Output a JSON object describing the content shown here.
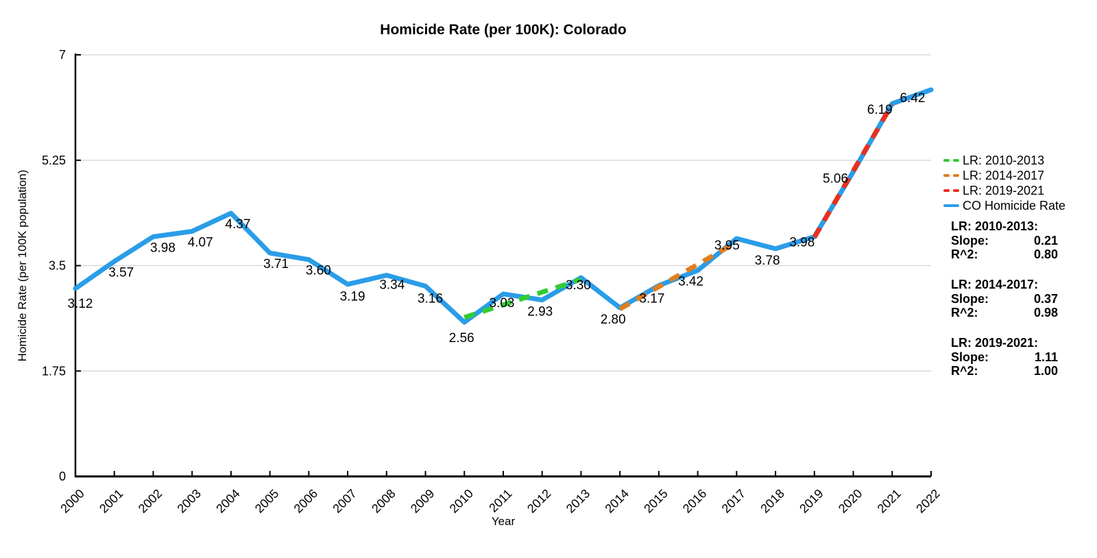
{
  "title": "Homicide Rate (per 100K): Colorado",
  "chart_data": {
    "type": "line",
    "title": "Homicide Rate (per 100K): Colorado",
    "xlabel": "Year",
    "ylabel": "Homicide Rate (per 100K population)",
    "x": [
      2000,
      2001,
      2002,
      2003,
      2004,
      2005,
      2006,
      2007,
      2008,
      2009,
      2010,
      2011,
      2012,
      2013,
      2014,
      2015,
      2016,
      2017,
      2018,
      2019,
      2020,
      2021,
      2022
    ],
    "xtick_labels": [
      "2000",
      "2001",
      "2002",
      "2003",
      "2004",
      "2005",
      "2006",
      "2007",
      "2008",
      "2009",
      "2010",
      "2011",
      "2012",
      "2013",
      "2014",
      "2015",
      "2016",
      "2017",
      "2018",
      "2019",
      "2020",
      "2021",
      "2022"
    ],
    "ylim": [
      0,
      7
    ],
    "ytick_values": [
      0,
      1.75,
      3.5,
      5.25,
      7
    ],
    "ytick_labels": [
      "0",
      "1.75",
      "3.5",
      "5.25",
      "7"
    ],
    "grid": "horizontal",
    "legend_position": "right",
    "series": [
      {
        "name": "CO Homicide Rate",
        "color": "#2A9DE8",
        "style": "solid",
        "values": [
          3.12,
          3.57,
          3.98,
          4.07,
          4.37,
          3.71,
          3.6,
          3.19,
          3.34,
          3.16,
          2.56,
          3.03,
          2.93,
          3.3,
          2.8,
          3.17,
          3.42,
          3.95,
          3.78,
          3.98,
          5.06,
          6.19,
          6.42
        ],
        "labels": [
          "3.12",
          "3.57",
          "3.98",
          "4.07",
          "4.37",
          "3.71",
          "3.60",
          "3.19",
          "3.34",
          "3.16",
          "2.56",
          "3.03",
          "2.93",
          "3.30",
          "2.80",
          "3.17",
          "3.42",
          "3.95",
          "3.78",
          "3.98",
          "5.06",
          "6.19",
          "6.42"
        ]
      }
    ],
    "regressions": [
      {
        "name": "LR: 2010-2013",
        "heading": "LR: 2010-2013:",
        "color": "#33CC33",
        "x_start": 2010,
        "x_end": 2013,
        "fit_start": 2.64,
        "fit_end": 3.27,
        "slope": "0.21",
        "r2": "0.80"
      },
      {
        "name": "LR: 2014-2017",
        "heading": "LR: 2014-2017:",
        "color": "#E07E1E",
        "x_start": 2014,
        "x_end": 2017,
        "fit_start": 2.78,
        "fit_end": 3.89,
        "slope": "0.37",
        "r2": "0.98"
      },
      {
        "name": "LR: 2019-2021",
        "heading": "LR: 2019-2021:",
        "color": "#E6301F",
        "x_start": 2019,
        "x_end": 2021,
        "fit_start": 3.97,
        "fit_end": 6.18,
        "slope": "1.11",
        "r2": "1.00"
      }
    ]
  },
  "stats_labels": {
    "slope": "Slope:",
    "r2": "R^2:"
  },
  "axis_colors": {
    "axis": "#000000",
    "grid": "#D9D9D9"
  }
}
